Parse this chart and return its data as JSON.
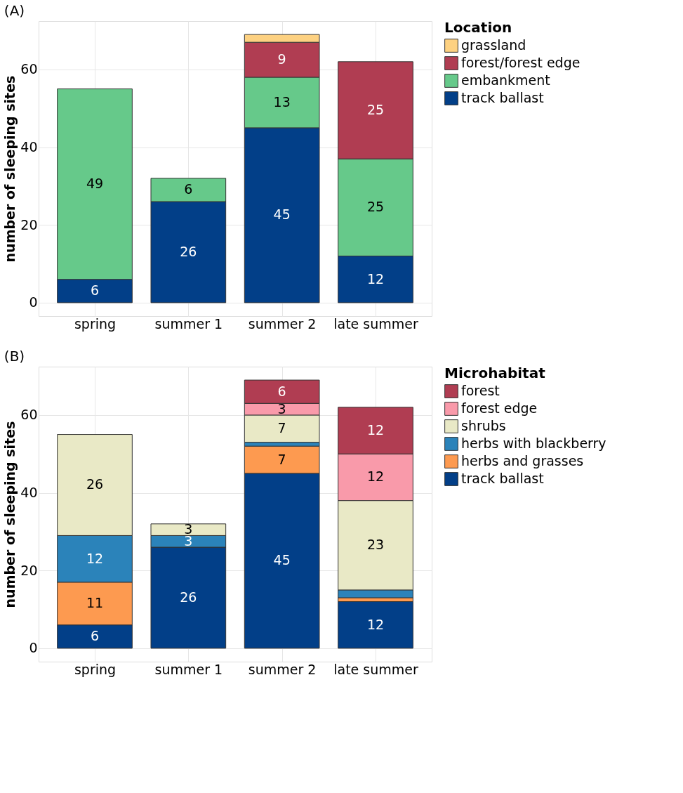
{
  "chart_data": [
    {
      "type": "bar",
      "title": "(A)",
      "ylabel": "number of sleeping sites",
      "legend_title": "Location",
      "stacked": true,
      "legend": "right",
      "grid": true,
      "categories": [
        "spring",
        "summer 1",
        "summer 2",
        "late summer"
      ],
      "ylim": [
        -3.45,
        72.45
      ],
      "yticks": [
        0,
        20,
        40,
        60
      ],
      "series": [
        {
          "name": "track ballast",
          "color": "#023f88",
          "values": [
            6,
            26,
            45,
            12
          ],
          "value_labels": [
            "6",
            "26",
            "45",
            "12"
          ]
        },
        {
          "name": "embankment",
          "color": "#66c98a",
          "values": [
            49,
            6,
            13,
            25
          ],
          "value_labels": [
            "49",
            "6",
            "13",
            "25"
          ]
        },
        {
          "name": "forest/forest edge",
          "color": "#b03d52",
          "values": [
            0,
            0,
            9,
            25
          ],
          "value_labels": [
            null,
            null,
            "9",
            "25"
          ]
        },
        {
          "name": "grassland",
          "color": "#fdd181",
          "values": [
            0,
            0,
            2,
            0
          ],
          "value_labels": [
            null,
            null,
            null,
            null
          ]
        }
      ]
    },
    {
      "type": "bar",
      "title": "(B)",
      "ylabel": "number of sleeping sites",
      "legend_title": "Microhabitat",
      "stacked": true,
      "legend": "right",
      "grid": true,
      "categories": [
        "spring",
        "summer 1",
        "summer 2",
        "late summer"
      ],
      "ylim": [
        -3.45,
        72.45
      ],
      "yticks": [
        0,
        20,
        40,
        60
      ],
      "series": [
        {
          "name": "track ballast",
          "color": "#023f88",
          "values": [
            6,
            26,
            45,
            12
          ],
          "value_labels": [
            "6",
            "26",
            "45",
            "12"
          ]
        },
        {
          "name": "herbs and grasses",
          "color": "#fd9a50",
          "values": [
            11,
            0,
            7,
            1
          ],
          "value_labels": [
            "11",
            null,
            "7",
            null
          ]
        },
        {
          "name": "herbs with blackberry",
          "color": "#2b83ba",
          "values": [
            12,
            3,
            1,
            2
          ],
          "value_labels": [
            "12",
            "3",
            null,
            null
          ]
        },
        {
          "name": "shrubs",
          "color": "#e9e9c6",
          "values": [
            26,
            3,
            7,
            23
          ],
          "value_labels": [
            "26",
            "3",
            "7",
            "23"
          ]
        },
        {
          "name": "forest edge",
          "color": "#f99aaa",
          "values": [
            0,
            0,
            3,
            12
          ],
          "value_labels": [
            null,
            null,
            "3",
            "12"
          ]
        },
        {
          "name": "forest",
          "color": "#b03d52",
          "values": [
            0,
            0,
            6,
            12
          ],
          "value_labels": [
            null,
            null,
            "6",
            "12"
          ]
        }
      ]
    }
  ]
}
